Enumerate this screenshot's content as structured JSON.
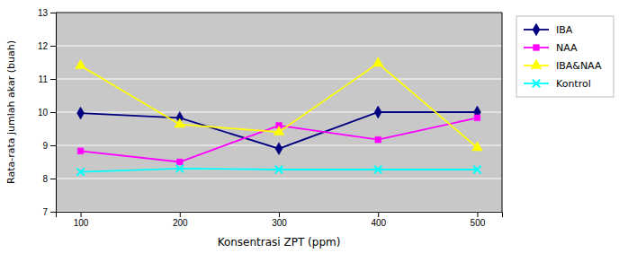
{
  "chart_data": {
    "type": "line",
    "x": [
      100,
      200,
      300,
      400,
      500
    ],
    "series": [
      {
        "name": "IBA",
        "color": "#000080",
        "marker": "diamond",
        "values": [
          9.97,
          9.83,
          8.9,
          10.0,
          10.0
        ]
      },
      {
        "name": "NAA",
        "color": "#FF00FF",
        "marker": "square",
        "values": [
          8.83,
          8.5,
          9.6,
          9.17,
          9.83
        ]
      },
      {
        "name": "IBA&NAA",
        "color": "#FFFF00",
        "marker": "triangle",
        "values": [
          11.4,
          9.63,
          9.4,
          11.47,
          8.93
        ]
      },
      {
        "name": "Kontrol",
        "color": "#00FFFF",
        "marker": "x",
        "values": [
          8.2,
          8.3,
          8.27,
          8.27,
          8.27
        ]
      }
    ],
    "xlabel": "Konsentrasi ZPT (ppm)",
    "ylabel": "Rata-rata jumlah akar (buah)",
    "xlim": [
      75,
      525
    ],
    "ylim": [
      7,
      13
    ],
    "xticks": [
      100,
      200,
      300,
      400,
      500
    ],
    "yticks": [
      7,
      8,
      9,
      10,
      11,
      12,
      13
    ],
    "grid": "y",
    "legend": "right"
  }
}
